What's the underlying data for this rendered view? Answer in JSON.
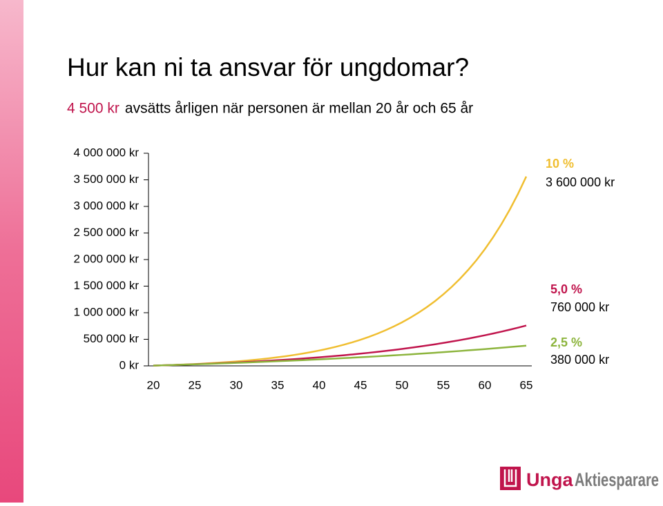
{
  "chart_data": {
    "type": "line",
    "title": "Hur kan ni ta ansvar för ungdomar?",
    "subtitle_amount": "4 500 kr",
    "subtitle": "avsätts årligen när personen är mellan 20 år och 65 år",
    "x": [
      20,
      21,
      22,
      23,
      24,
      25,
      26,
      27,
      28,
      29,
      30,
      31,
      32,
      33,
      34,
      35,
      36,
      37,
      38,
      39,
      40,
      41,
      42,
      43,
      44,
      45,
      46,
      47,
      48,
      49,
      50,
      51,
      52,
      53,
      54,
      55,
      56,
      57,
      58,
      59,
      60,
      61,
      62,
      63,
      64,
      65
    ],
    "xlim": [
      20,
      65
    ],
    "xticks": [
      20,
      25,
      30,
      35,
      40,
      45,
      50,
      55,
      60,
      65
    ],
    "ylim": [
      0,
      4000000
    ],
    "yticks": [
      {
        "value": 0,
        "label": "0 kr"
      },
      {
        "value": 500000,
        "label": "500 000 kr"
      },
      {
        "value": 1000000,
        "label": "1 000 000 kr"
      },
      {
        "value": 1500000,
        "label": "1 500 000 kr"
      },
      {
        "value": 2000000,
        "label": "2 000 000 kr"
      },
      {
        "value": 2500000,
        "label": "2 500 000 kr"
      },
      {
        "value": 3000000,
        "label": "3 000 000 kr"
      },
      {
        "value": 3500000,
        "label": "3 500 000 kr"
      },
      {
        "value": 4000000,
        "label": "4 000 000 kr"
      }
    ],
    "series": [
      {
        "name": "10 %",
        "color": "#f0be30",
        "end_label": "3 600 000 kr",
        "values": [
          4500,
          9450,
          14895,
          20885,
          27473,
          34722,
          42692,
          51462,
          61106,
          71717,
          83390,
          96228,
          110354,
          125888,
          142974,
          161775,
          182453,
          205196,
          230216,
          257738,
          288009,
          321314,
          357944,
          398237,
          442575,
          491310,
          544950,
          603945,
          668835,
          740205,
          818730,
          905130,
          1000125,
          1104660,
          1219590,
          1346085,
          1485180,
          1638180,
          1806525,
          1990155,
          2195325,
          2419380,
          2665800,
          2936880,
          3235050,
          3563100
        ]
      },
      {
        "name": "5,0 %",
        "color": "#c0144c",
        "end_label": "760 000 kr",
        "values": [
          4500,
          9225,
          14184,
          19395,
          24867,
          30609,
          36639,
          42975,
          49617,
          56601,
          63927,
          71631,
          79704,
          88191,
          97101,
          106461,
          116280,
          126594,
          137430,
          148797,
          160740,
          173277,
          186435,
          200259,
          214776,
          230013,
          246015,
          262809,
          280449,
          298971,
          318420,
          338841,
          360288,
          382797,
          406440,
          431262,
          457326,
          484695,
          513432,
          543600,
          575280,
          608544,
          643473,
          680148,
          718650,
          759087
        ]
      },
      {
        "name": "2,5 %",
        "color": "#8cb43c",
        "end_label": "380 000 kr",
        "values": [
          4500,
          9108,
          13842,
          18684,
          23652,
          28746,
          33966,
          39312,
          44802,
          50418,
          56178,
          62082,
          68130,
          74340,
          80694,
          87210,
          93888,
          100746,
          107766,
          114948,
          122328,
          129888,
          137628,
          145566,
          153702,
          162054,
          170604,
          179370,
          188352,
          197568,
          207000,
          216684,
          226602,
          236754,
          247176,
          257850,
          268812,
          280026,
          291528,
          303318,
          315396,
          327780,
          340470,
          353484,
          366822,
          380502
        ]
      }
    ],
    "logo_unga": "Unga",
    "logo_rest": "Aktiesparare"
  }
}
